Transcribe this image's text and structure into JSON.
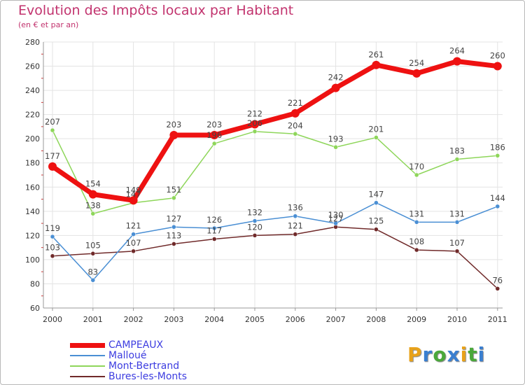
{
  "header": {
    "title": "Evolution des Impôts locaux par Habitant",
    "subtitle": "(en € et par an)"
  },
  "logo": {
    "text": "Proxiti",
    "letters": [
      "P",
      "r",
      "o",
      "x",
      "i",
      "t",
      "i"
    ],
    "colors": [
      "#e8a21a",
      "#3a7fd0",
      "#4aa83a",
      "#3a7fd0",
      "#e8a21a",
      "#4aa83a",
      "#3a7fd0"
    ]
  },
  "chart_data": {
    "type": "line",
    "title": "Evolution des Impôts locaux par Habitant",
    "subtitle": "(en € et par an)",
    "xlabel": "",
    "ylabel": "",
    "x": [
      "2000",
      "2001",
      "2002",
      "2003",
      "2004",
      "2005",
      "2006",
      "2007",
      "2008",
      "2009",
      "2010",
      "2011"
    ],
    "ylim": [
      60,
      280
    ],
    "yticks": [
      60,
      80,
      100,
      120,
      140,
      160,
      180,
      200,
      220,
      240,
      260,
      280
    ],
    "grid": true,
    "legend_position": "bottom-left",
    "series": [
      {
        "name": "CAMPEAUX",
        "color": "#ee1111",
        "values": [
          177,
          154,
          149,
          203,
          203,
          212,
          221,
          242,
          261,
          254,
          264,
          260
        ]
      },
      {
        "name": "Malloué",
        "color": "#4a8fd4",
        "values": [
          119,
          83,
          121,
          127,
          126,
          132,
          136,
          130,
          147,
          131,
          131,
          144
        ]
      },
      {
        "name": "Mont-Bertrand",
        "color": "#8ed65a",
        "values": [
          207,
          138,
          147,
          151,
          196,
          206,
          204,
          193,
          201,
          170,
          183,
          186
        ]
      },
      {
        "name": "Bures-les-Monts",
        "color": "#702a2a",
        "values": [
          103,
          105,
          107,
          113,
          117,
          120,
          121,
          127,
          125,
          108,
          107,
          76
        ]
      }
    ]
  }
}
